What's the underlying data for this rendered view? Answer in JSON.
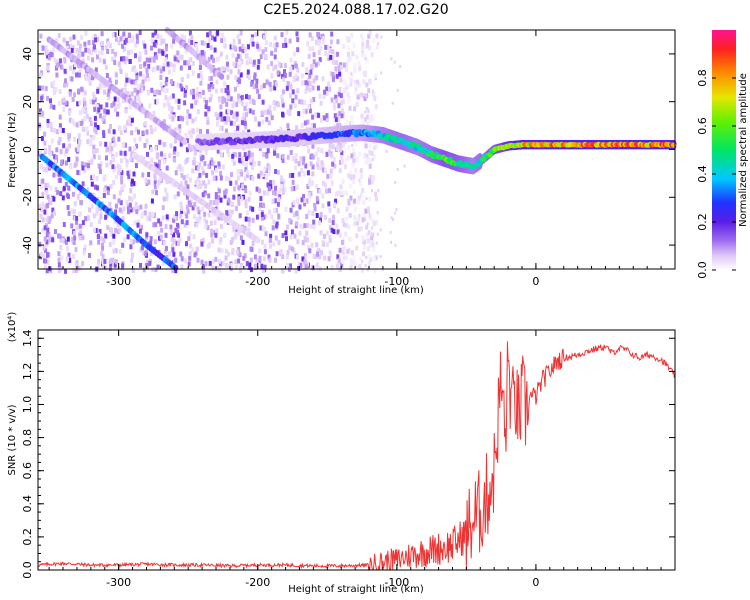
{
  "title": "C2E5.2024.088.17.02.G20",
  "chart_data": [
    {
      "type": "heatmap",
      "xlabel": "Height of straight line (km)",
      "ylabel": "Frequency (Hz)",
      "xlim": [
        -358,
        100
      ],
      "ylim": [
        -50,
        50
      ],
      "xticks": [
        -300,
        -200,
        -100,
        0
      ],
      "xtick_labels": [
        "-300",
        "-200",
        "-100",
        "0"
      ],
      "yticks": [
        -40,
        -20,
        0,
        20,
        40
      ],
      "ytick_labels": [
        "-40",
        "-20",
        "0",
        "20",
        "40"
      ],
      "colorbar": {
        "label": "Normalized spectral amplitude",
        "range": [
          0,
          1
        ],
        "ticks": [
          0.0,
          0.2,
          0.4,
          0.6,
          0.8
        ],
        "tick_labels": [
          "0.0",
          "0.2",
          "0.4",
          "0.6",
          "0.8"
        ]
      },
      "main_track": {
        "description_values": "center frequency (Hz) vs height (km), amplitude 0-1",
        "x": [
          -243,
          -220,
          -200,
          -180,
          -160,
          -140,
          -125,
          -110,
          -95,
          -85,
          -75,
          -65,
          -55,
          -45,
          -38,
          -30,
          -20,
          -10,
          0,
          20,
          50,
          70,
          90,
          100
        ],
        "freq": [
          3,
          3.5,
          4,
          4.5,
          5.5,
          6.5,
          7,
          6,
          3,
          1,
          -2,
          -4,
          -6,
          -7,
          -4,
          0,
          1.5,
          2,
          2,
          2,
          2,
          2,
          2,
          2
        ],
        "amp": [
          0.15,
          0.18,
          0.2,
          0.22,
          0.25,
          0.3,
          0.35,
          0.45,
          0.5,
          0.45,
          0.5,
          0.6,
          0.55,
          0.45,
          0.5,
          0.6,
          0.75,
          0.8,
          0.85,
          0.88,
          0.9,
          0.9,
          0.9,
          0.88
        ]
      },
      "diagonal_tracks": [
        {
          "x": [
            -355,
            -330,
            -305,
            -280,
            -258
          ],
          "freq": [
            -3,
            -15,
            -27,
            -40,
            -50
          ],
          "amp": 0.3
        },
        {
          "x": [
            -350,
            -325,
            -300,
            -275,
            -252
          ],
          "freq": [
            46,
            35,
            24,
            13,
            3
          ],
          "amp": 0.08
        },
        {
          "x": [
            -265,
            -245,
            -225
          ],
          "freq": [
            50,
            40,
            30
          ],
          "amp": 0.08
        },
        {
          "x": [
            -290,
            -260,
            -230,
            -200
          ],
          "freq": [
            -2,
            -14,
            -26,
            -38
          ],
          "amp": 0.05
        }
      ],
      "noise_region": {
        "x_range": [
          -358,
          -130
        ],
        "amp": 0.05
      }
    },
    {
      "type": "line",
      "xlabel": "Height of straight line (km)",
      "ylabel": "SNR (10 * v/v)",
      "y_multiplier": "(x10⁴)",
      "xlim": [
        -358,
        100
      ],
      "ylim": [
        0,
        1.45
      ],
      "xticks": [
        -300,
        -200,
        -100,
        0
      ],
      "xtick_labels": [
        "-300",
        "-200",
        "-100",
        "0"
      ],
      "yticks": [
        0.0,
        0.2,
        0.4,
        0.6,
        0.8,
        1.0,
        1.2,
        1.4
      ],
      "ytick_labels": [
        "0.0",
        "0.2",
        "0.4",
        "0.6",
        "0.8",
        "1.0",
        "1.2",
        "1.4"
      ],
      "color": "#ee3333",
      "series": [
        {
          "x": [
            -358,
            -340,
            -320,
            -300,
            -280,
            -260,
            -240,
            -220,
            -200,
            -180,
            -160,
            -140,
            -120,
            -110,
            -100,
            -90,
            -80,
            -70,
            -60,
            -50,
            -45,
            -40,
            -35,
            -30,
            -27,
            -25,
            -22,
            -20,
            -17,
            -15,
            -12,
            -10,
            -7,
            -5,
            0,
            5,
            10,
            15,
            20,
            30,
            40,
            50,
            55,
            60,
            65,
            70,
            75,
            80,
            85,
            90,
            95,
            100
          ],
          "y": [
            0.03,
            0.04,
            0.03,
            0.03,
            0.035,
            0.03,
            0.03,
            0.025,
            0.03,
            0.03,
            0.025,
            0.025,
            0.03,
            0.05,
            0.06,
            0.09,
            0.11,
            0.13,
            0.15,
            0.22,
            0.3,
            0.35,
            0.45,
            0.6,
            0.95,
            1.15,
            0.8,
            1.25,
            0.95,
            1.05,
            0.9,
            1.05,
            0.95,
            1.05,
            1.05,
            1.15,
            1.2,
            1.26,
            1.28,
            1.3,
            1.33,
            1.35,
            1.31,
            1.34,
            1.33,
            1.3,
            1.28,
            1.3,
            1.29,
            1.27,
            1.23,
            1.17
          ]
        }
      ]
    }
  ]
}
